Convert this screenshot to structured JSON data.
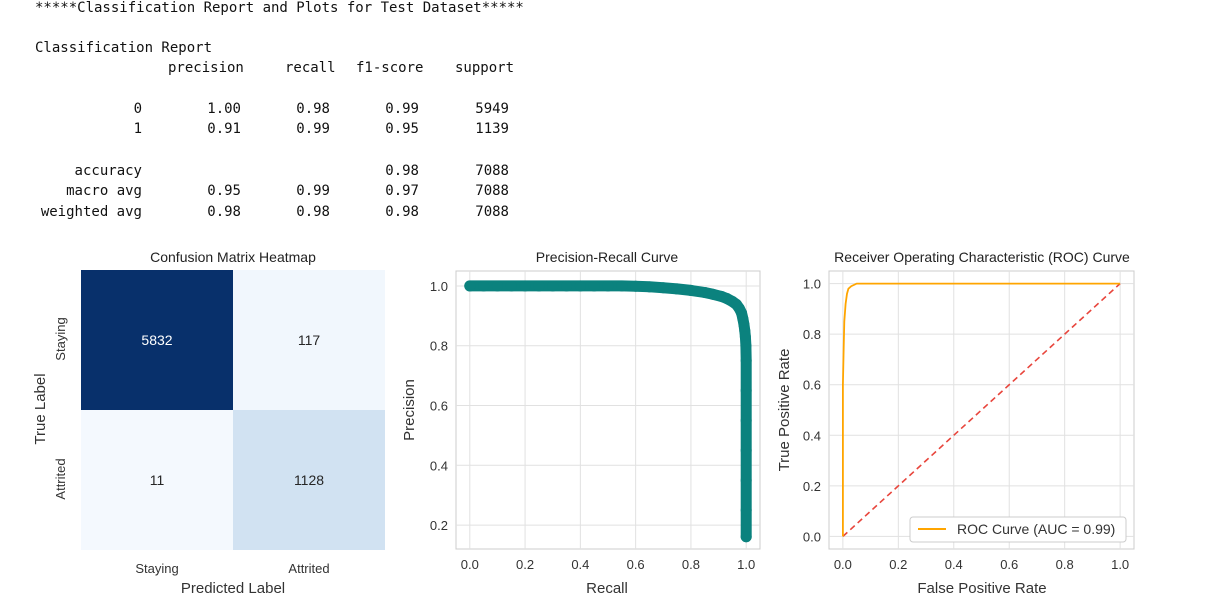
{
  "output": {
    "header": "*****Classification Report and Plots for Test Dataset*****",
    "report_title": "Classification Report",
    "columns": [
      "precision",
      "recall",
      "f1-score",
      "support"
    ],
    "rows": [
      {
        "label": "0",
        "precision": "1.00",
        "recall": "0.98",
        "f1": "0.99",
        "support": "5949"
      },
      {
        "label": "1",
        "precision": "0.91",
        "recall": "0.99",
        "f1": "0.95",
        "support": "1139"
      },
      {
        "label": "accuracy",
        "precision": "",
        "recall": "",
        "f1": "0.98",
        "support": "7088"
      },
      {
        "label": "macro avg",
        "precision": "0.95",
        "recall": "0.99",
        "f1": "0.97",
        "support": "7088"
      },
      {
        "label": "weighted avg",
        "precision": "0.98",
        "recall": "0.98",
        "f1": "0.98",
        "support": "7088"
      }
    ]
  },
  "chart_data": [
    {
      "type": "heatmap",
      "title": "Confusion Matrix Heatmap",
      "xlabel": "Predicted Label",
      "ylabel": "True Label",
      "x_categories": [
        "Staying",
        "Attrited"
      ],
      "y_categories": [
        "Staying",
        "Attrited"
      ],
      "values": [
        [
          5832,
          117
        ],
        [
          11,
          1128
        ]
      ],
      "colormap": "Blues",
      "colors": {
        "high": "#08306b",
        "mid": "#cfe1f2",
        "low": "#f4f9fe"
      }
    },
    {
      "type": "scatter",
      "title": "Precision-Recall Curve",
      "xlabel": "Recall",
      "ylabel": "Precision",
      "xlim": [
        -0.05,
        1.05
      ],
      "ylim": [
        0.12,
        1.05
      ],
      "xticks": [
        "0.0",
        "0.2",
        "0.4",
        "0.6",
        "0.8",
        "1.0"
      ],
      "yticks": [
        "0.2",
        "0.4",
        "0.6",
        "0.8",
        "1.0"
      ],
      "grid": true,
      "color": "#0b827e",
      "points": [
        [
          0.0,
          1.0
        ],
        [
          0.05,
          1.0
        ],
        [
          0.1,
          1.0
        ],
        [
          0.15,
          1.0
        ],
        [
          0.2,
          1.0
        ],
        [
          0.25,
          1.0
        ],
        [
          0.3,
          1.0
        ],
        [
          0.35,
          1.0
        ],
        [
          0.4,
          1.0
        ],
        [
          0.45,
          1.0
        ],
        [
          0.5,
          1.0
        ],
        [
          0.55,
          1.0
        ],
        [
          0.6,
          0.999
        ],
        [
          0.65,
          0.997
        ],
        [
          0.7,
          0.994
        ],
        [
          0.75,
          0.99
        ],
        [
          0.8,
          0.985
        ],
        [
          0.85,
          0.978
        ],
        [
          0.88,
          0.972
        ],
        [
          0.91,
          0.965
        ],
        [
          0.93,
          0.958
        ],
        [
          0.95,
          0.948
        ],
        [
          0.965,
          0.938
        ],
        [
          0.975,
          0.925
        ],
        [
          0.983,
          0.91
        ],
        [
          0.988,
          0.89
        ],
        [
          0.992,
          0.87
        ],
        [
          0.995,
          0.85
        ],
        [
          0.997,
          0.83
        ],
        [
          0.999,
          0.8
        ],
        [
          1.0,
          0.75
        ],
        [
          1.0,
          0.65
        ],
        [
          1.0,
          0.55
        ],
        [
          1.0,
          0.45
        ],
        [
          1.0,
          0.35
        ],
        [
          1.0,
          0.25
        ],
        [
          1.0,
          0.161
        ]
      ]
    },
    {
      "type": "line",
      "title": "Receiver Operating Characteristic (ROC) Curve",
      "xlabel": "False Positive Rate",
      "ylabel": "True Positive Rate",
      "xlim": [
        -0.05,
        1.05
      ],
      "ylim": [
        -0.05,
        1.05
      ],
      "xticks": [
        "0.0",
        "0.2",
        "0.4",
        "0.6",
        "0.8",
        "1.0"
      ],
      "yticks": [
        "0.0",
        "0.2",
        "0.4",
        "0.6",
        "0.8",
        "1.0"
      ],
      "grid": true,
      "legend_position": "bottom-right",
      "series": [
        {
          "name": "ROC Curve (AUC = 0.99)",
          "color": "#ffa500",
          "points": [
            [
              0.0,
              0.0
            ],
            [
              0.0,
              0.6
            ],
            [
              0.003,
              0.75
            ],
            [
              0.005,
              0.85
            ],
            [
              0.01,
              0.92
            ],
            [
              0.015,
              0.96
            ],
            [
              0.02,
              0.98
            ],
            [
              0.03,
              0.99
            ],
            [
              0.05,
              1.0
            ],
            [
              1.0,
              1.0
            ]
          ]
        },
        {
          "name": "",
          "color": "#e8453c",
          "dashed": true,
          "points": [
            [
              0.0,
              0.0
            ],
            [
              1.0,
              1.0
            ]
          ]
        }
      ]
    }
  ]
}
